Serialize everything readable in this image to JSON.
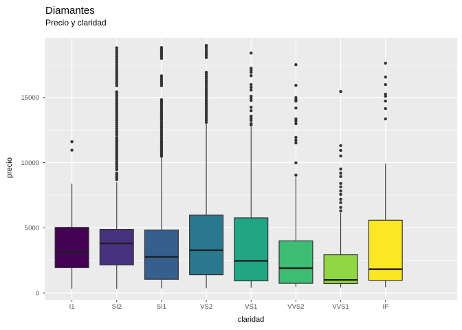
{
  "header": {
    "title": "Diamantes",
    "subtitle": "Precio y claridad"
  },
  "chart_data": {
    "type": "boxplot",
    "title": "Diamantes",
    "subtitle": "Precio y claridad",
    "xlabel": "claridad",
    "ylabel": "precio",
    "categories": [
      "I1",
      "SI2",
      "SI1",
      "VS2",
      "VS1",
      "VVS2",
      "VVS1",
      "IF"
    ],
    "y_ticks": [
      0,
      5000,
      10000,
      15000
    ],
    "y_minor_ticks": [
      2500,
      7500,
      12500,
      17500
    ],
    "ylim": [
      -520,
      19570
    ],
    "grid": true,
    "legend": "none",
    "panel_bg": "#EBEBEB",
    "grid_color": "#FFFFFF",
    "box_border_color": "#333333",
    "median_color": "#1F1F1F",
    "outlier_color": "#333333",
    "tick_label_color": "#4D4D4D",
    "series": [
      {
        "label": "I1",
        "color": "#440154",
        "min": 330,
        "q1": 1940,
        "median": 3160,
        "q3": 5030,
        "max": 8390,
        "outliers": [
          10950,
          11600
        ]
      },
      {
        "label": "SI2",
        "color": "#46327E",
        "min": 320,
        "q1": 2150,
        "median": 3800,
        "q3": 4880,
        "max": 8490,
        "outliers": [
          8700,
          8830,
          8960,
          9090,
          9190,
          9450,
          9580,
          9710,
          9840,
          9970,
          10100,
          10230,
          10360,
          10490,
          10620,
          10750,
          10880,
          11010,
          11140,
          11270,
          11400,
          11530,
          11660,
          11790,
          11920,
          12130,
          12290,
          12450,
          12610,
          12770,
          12930,
          13090,
          13250,
          13410,
          13570,
          13730,
          13890,
          14050,
          14210,
          14370,
          14530,
          14690,
          14850,
          15010,
          15170,
          15330,
          15430,
          15900,
          16060,
          16220,
          16380,
          16540,
          16700,
          16860,
          17020,
          17180,
          17340,
          17500,
          17660,
          17820,
          17980,
          18140,
          18300,
          18460,
          18620,
          18800
        ]
      },
      {
        "label": "SI1",
        "color": "#355F8D",
        "min": 350,
        "q1": 1050,
        "median": 2770,
        "q3": 4830,
        "max": 10350,
        "outliers": [
          10480,
          10610,
          10740,
          10870,
          11000,
          11130,
          11260,
          11390,
          11520,
          11650,
          11800,
          11950,
          12100,
          12250,
          12400,
          12550,
          12700,
          12850,
          13000,
          13150,
          13300,
          13420,
          13560,
          13700,
          13840,
          13980,
          14120,
          14260,
          14400,
          14540,
          14680,
          14820,
          15900,
          16050,
          16200,
          16350,
          16500,
          16650,
          17990,
          18130,
          18270,
          18410,
          18550,
          18690,
          18820
        ]
      },
      {
        "label": "VS2",
        "color": "#2A788E",
        "min": 360,
        "q1": 1400,
        "median": 3280,
        "q3": 5970,
        "max": 12980,
        "outliers": [
          13090,
          13250,
          13410,
          13570,
          13730,
          13890,
          14050,
          14210,
          14370,
          14530,
          14690,
          14850,
          15010,
          15170,
          15330,
          15490,
          15650,
          15810,
          15970,
          16130,
          16290,
          16450,
          16610,
          16770,
          16930,
          18060,
          18220,
          18380,
          18540,
          18700,
          18860,
          18990
        ]
      },
      {
        "label": "VS1",
        "color": "#21A585",
        "min": 400,
        "q1": 930,
        "median": 2460,
        "q3": 5760,
        "max": 12720,
        "outliers": [
          12880,
          12980,
          13240,
          13400,
          13560,
          13980,
          14250,
          14770,
          14930,
          15090,
          15560,
          15770,
          15980,
          16660,
          16920,
          17080,
          17240,
          18400
        ]
      },
      {
        "label": "VVS2",
        "color": "#3DBC74",
        "min": 460,
        "q1": 740,
        "median": 1900,
        "q3": 4000,
        "max": 8880,
        "outliers": [
          9040,
          9980,
          11510,
          11720,
          11930,
          12980,
          13190,
          13350,
          14190,
          14720,
          14820,
          14980,
          15930,
          17510
        ]
      },
      {
        "label": "VVS1",
        "color": "#90D743",
        "min": 420,
        "q1": 720,
        "median": 1000,
        "q3": 2930,
        "max": 6140,
        "outliers": [
          6300,
          6560,
          6930,
          7190,
          7560,
          7830,
          8140,
          8400,
          8930,
          9190,
          9510,
          10510,
          10930,
          11300,
          15450
        ]
      },
      {
        "label": "IF",
        "color": "#FDE725",
        "min": 430,
        "q1": 970,
        "median": 1820,
        "q3": 5580,
        "max": 9930,
        "outliers": [
          13350,
          14140,
          14720,
          15090,
          15250,
          15980,
          16560,
          17620
        ]
      }
    ]
  }
}
